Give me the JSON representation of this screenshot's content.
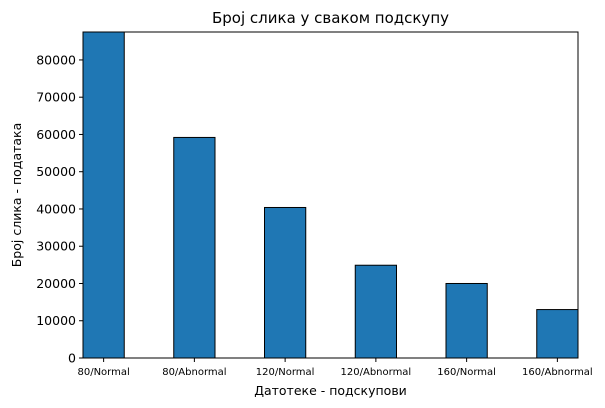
{
  "chart_data": {
    "type": "bar",
    "title": "Број слика у сваком подскупу",
    "xlabel": "Датотеке - подскупови",
    "ylabel": "Број слика - података",
    "categories": [
      "80/Normal",
      "80/Abnormal",
      "120/Normal",
      "120/Abnormal",
      "160/Normal",
      "160/Abnormal"
    ],
    "values": [
      87500,
      59200,
      40400,
      24900,
      20000,
      13000
    ],
    "ylim": [
      0,
      87500
    ],
    "yticks": [
      0,
      10000,
      20000,
      30000,
      40000,
      50000,
      60000,
      70000,
      80000
    ],
    "bar_color": "#1f77b4",
    "edge_color": "#000000",
    "grid": false
  }
}
